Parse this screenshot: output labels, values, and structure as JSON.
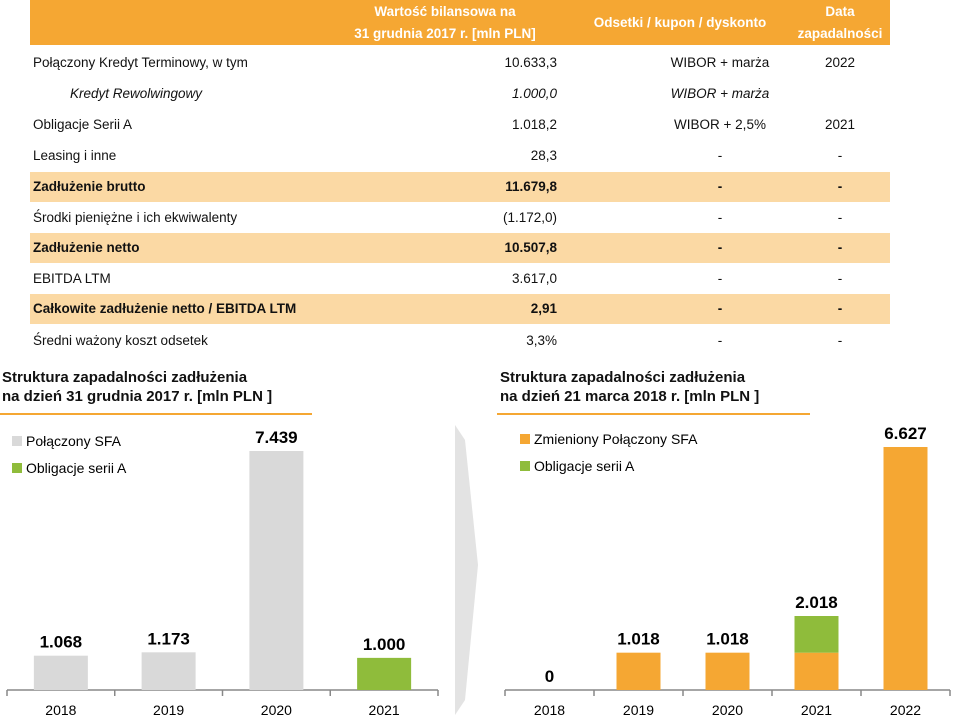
{
  "table": {
    "headers": {
      "value": [
        "Wartość bilansowa na",
        "31 grudnia 2017 r. [mln PLN]"
      ],
      "rate": "Odsetki / kupon / dyskonto",
      "date": [
        "Data",
        "zapadalności"
      ]
    },
    "rows": [
      {
        "label": "Połączony Kredyt Terminowy, w tym",
        "value": "10.633,3",
        "rate": "WIBOR + marża",
        "date": "2022"
      },
      {
        "label": "Kredyt Rewolwingowy",
        "value": "1.000,0",
        "rate": "WIBOR + marża",
        "date": "",
        "italic": true
      },
      {
        "label": "Obligacje Serii A",
        "value": "1.018,2",
        "rate": "WIBOR + 2,5%",
        "date": "2021"
      },
      {
        "label": "Leasing i inne",
        "value": "28,3",
        "rate": "-",
        "date": "-"
      },
      {
        "label": "Zadłużenie brutto",
        "value": "11.679,8",
        "rate": "-",
        "date": "-",
        "highlight": true
      },
      {
        "label": "Środki pieniężne i ich ekwiwalenty",
        "value": "(1.172,0)",
        "rate": "-",
        "date": "-"
      },
      {
        "label": "Zadłużenie netto",
        "value": "10.507,8",
        "rate": "-",
        "date": "-",
        "highlight": true
      },
      {
        "label": "EBITDA LTM",
        "value": "3.617,0",
        "rate": "-",
        "date": "-"
      },
      {
        "label": "Całkowite zadłużenie netto / EBITDA LTM",
        "value": "2,91",
        "rate": "-",
        "date": "-",
        "highlight": true
      },
      {
        "label": "Średni ważony koszt odsetek",
        "value": "3,3%",
        "rate": "-",
        "date": "-"
      }
    ]
  },
  "colors": {
    "orange": "#f5a733",
    "green": "#8fbc3b",
    "grey": "#d9d9d9",
    "highlight": "#fbd9a4"
  },
  "chart_data": [
    {
      "type": "bar",
      "title": [
        "Struktura zapadalności zadłużenia",
        "na dzień 31 grudnia 2017 r. [mln PLN ]"
      ],
      "categories": [
        "2018",
        "2019",
        "2020",
        "2021"
      ],
      "series": [
        {
          "name": "Połączony SFA",
          "color": "#d9d9d9",
          "values": [
            1068,
            1173,
            7439,
            0
          ]
        },
        {
          "name": "Obligacje serii A",
          "color": "#8fbc3b",
          "values": [
            0,
            0,
            0,
            1000
          ]
        }
      ],
      "labels": [
        "1.068",
        "1.173",
        "7.439",
        "1.000"
      ],
      "legend": "top-left",
      "grid": false
    },
    {
      "type": "bar",
      "stacked": true,
      "title": [
        "Struktura zapadalności zadłużenia",
        "na dzień 21 marca 2018 r. [mln PLN ]"
      ],
      "categories": [
        "2018",
        "2019",
        "2020",
        "2021",
        "2022"
      ],
      "series": [
        {
          "name": "Zmieniony Połączony SFA",
          "color": "#f5a733",
          "values": [
            0,
            1018,
            1018,
            1018,
            6627
          ]
        },
        {
          "name": "Obligacje serii A",
          "color": "#8fbc3b",
          "values": [
            0,
            0,
            0,
            1000,
            0
          ]
        }
      ],
      "labels": [
        "0",
        "1.018",
        "1.018",
        "2.018",
        "6.627"
      ],
      "legend": "top-left",
      "grid": false
    }
  ]
}
